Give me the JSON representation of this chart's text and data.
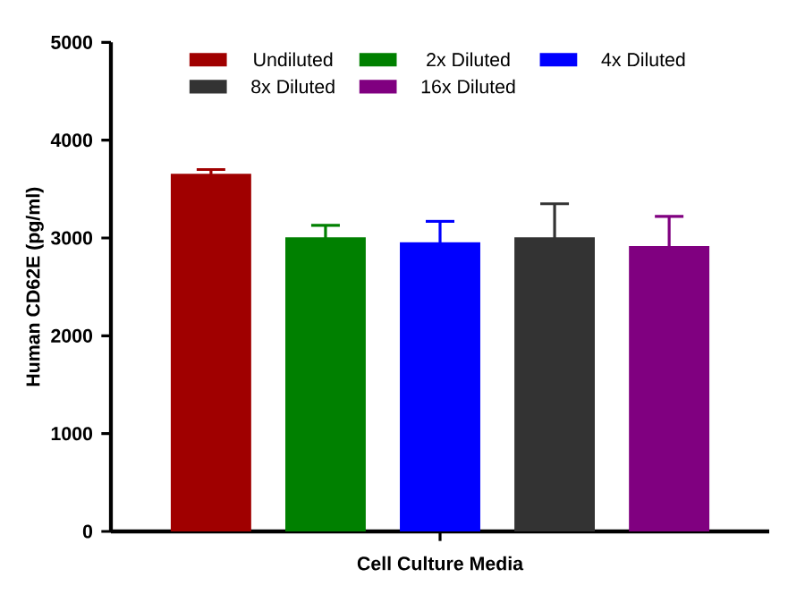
{
  "chart_data": {
    "type": "bar",
    "xlabel": "Cell Culture Media",
    "ylabel": "Human CD62E (pg/ml)",
    "categories": [
      null
    ],
    "series": [
      {
        "name": "Undiluted",
        "color": "#a00000",
        "values": [
          3650
        ],
        "errors": [
          [
            3650,
            3700
          ]
        ]
      },
      {
        "name": "2x Diluted",
        "color": "#008000",
        "values": [
          3000
        ],
        "errors": [
          [
            3000,
            3130
          ]
        ]
      },
      {
        "name": "4x Diluted",
        "color": "#0000ff",
        "values": [
          2950
        ],
        "errors": [
          [
            2950,
            3170
          ]
        ]
      },
      {
        "name": "8x Diluted",
        "color": "#333333",
        "values": [
          3000
        ],
        "errors": [
          [
            3000,
            3350
          ]
        ]
      },
      {
        "name": "16x Diluted",
        "color": "#800080",
        "values": [
          2910
        ],
        "errors": [
          [
            2910,
            3220
          ]
        ]
      }
    ],
    "ylim": [
      0,
      5000
    ],
    "yticks": [
      0,
      1000,
      2000,
      3000,
      4000,
      5000
    ],
    "legend": "top"
  }
}
